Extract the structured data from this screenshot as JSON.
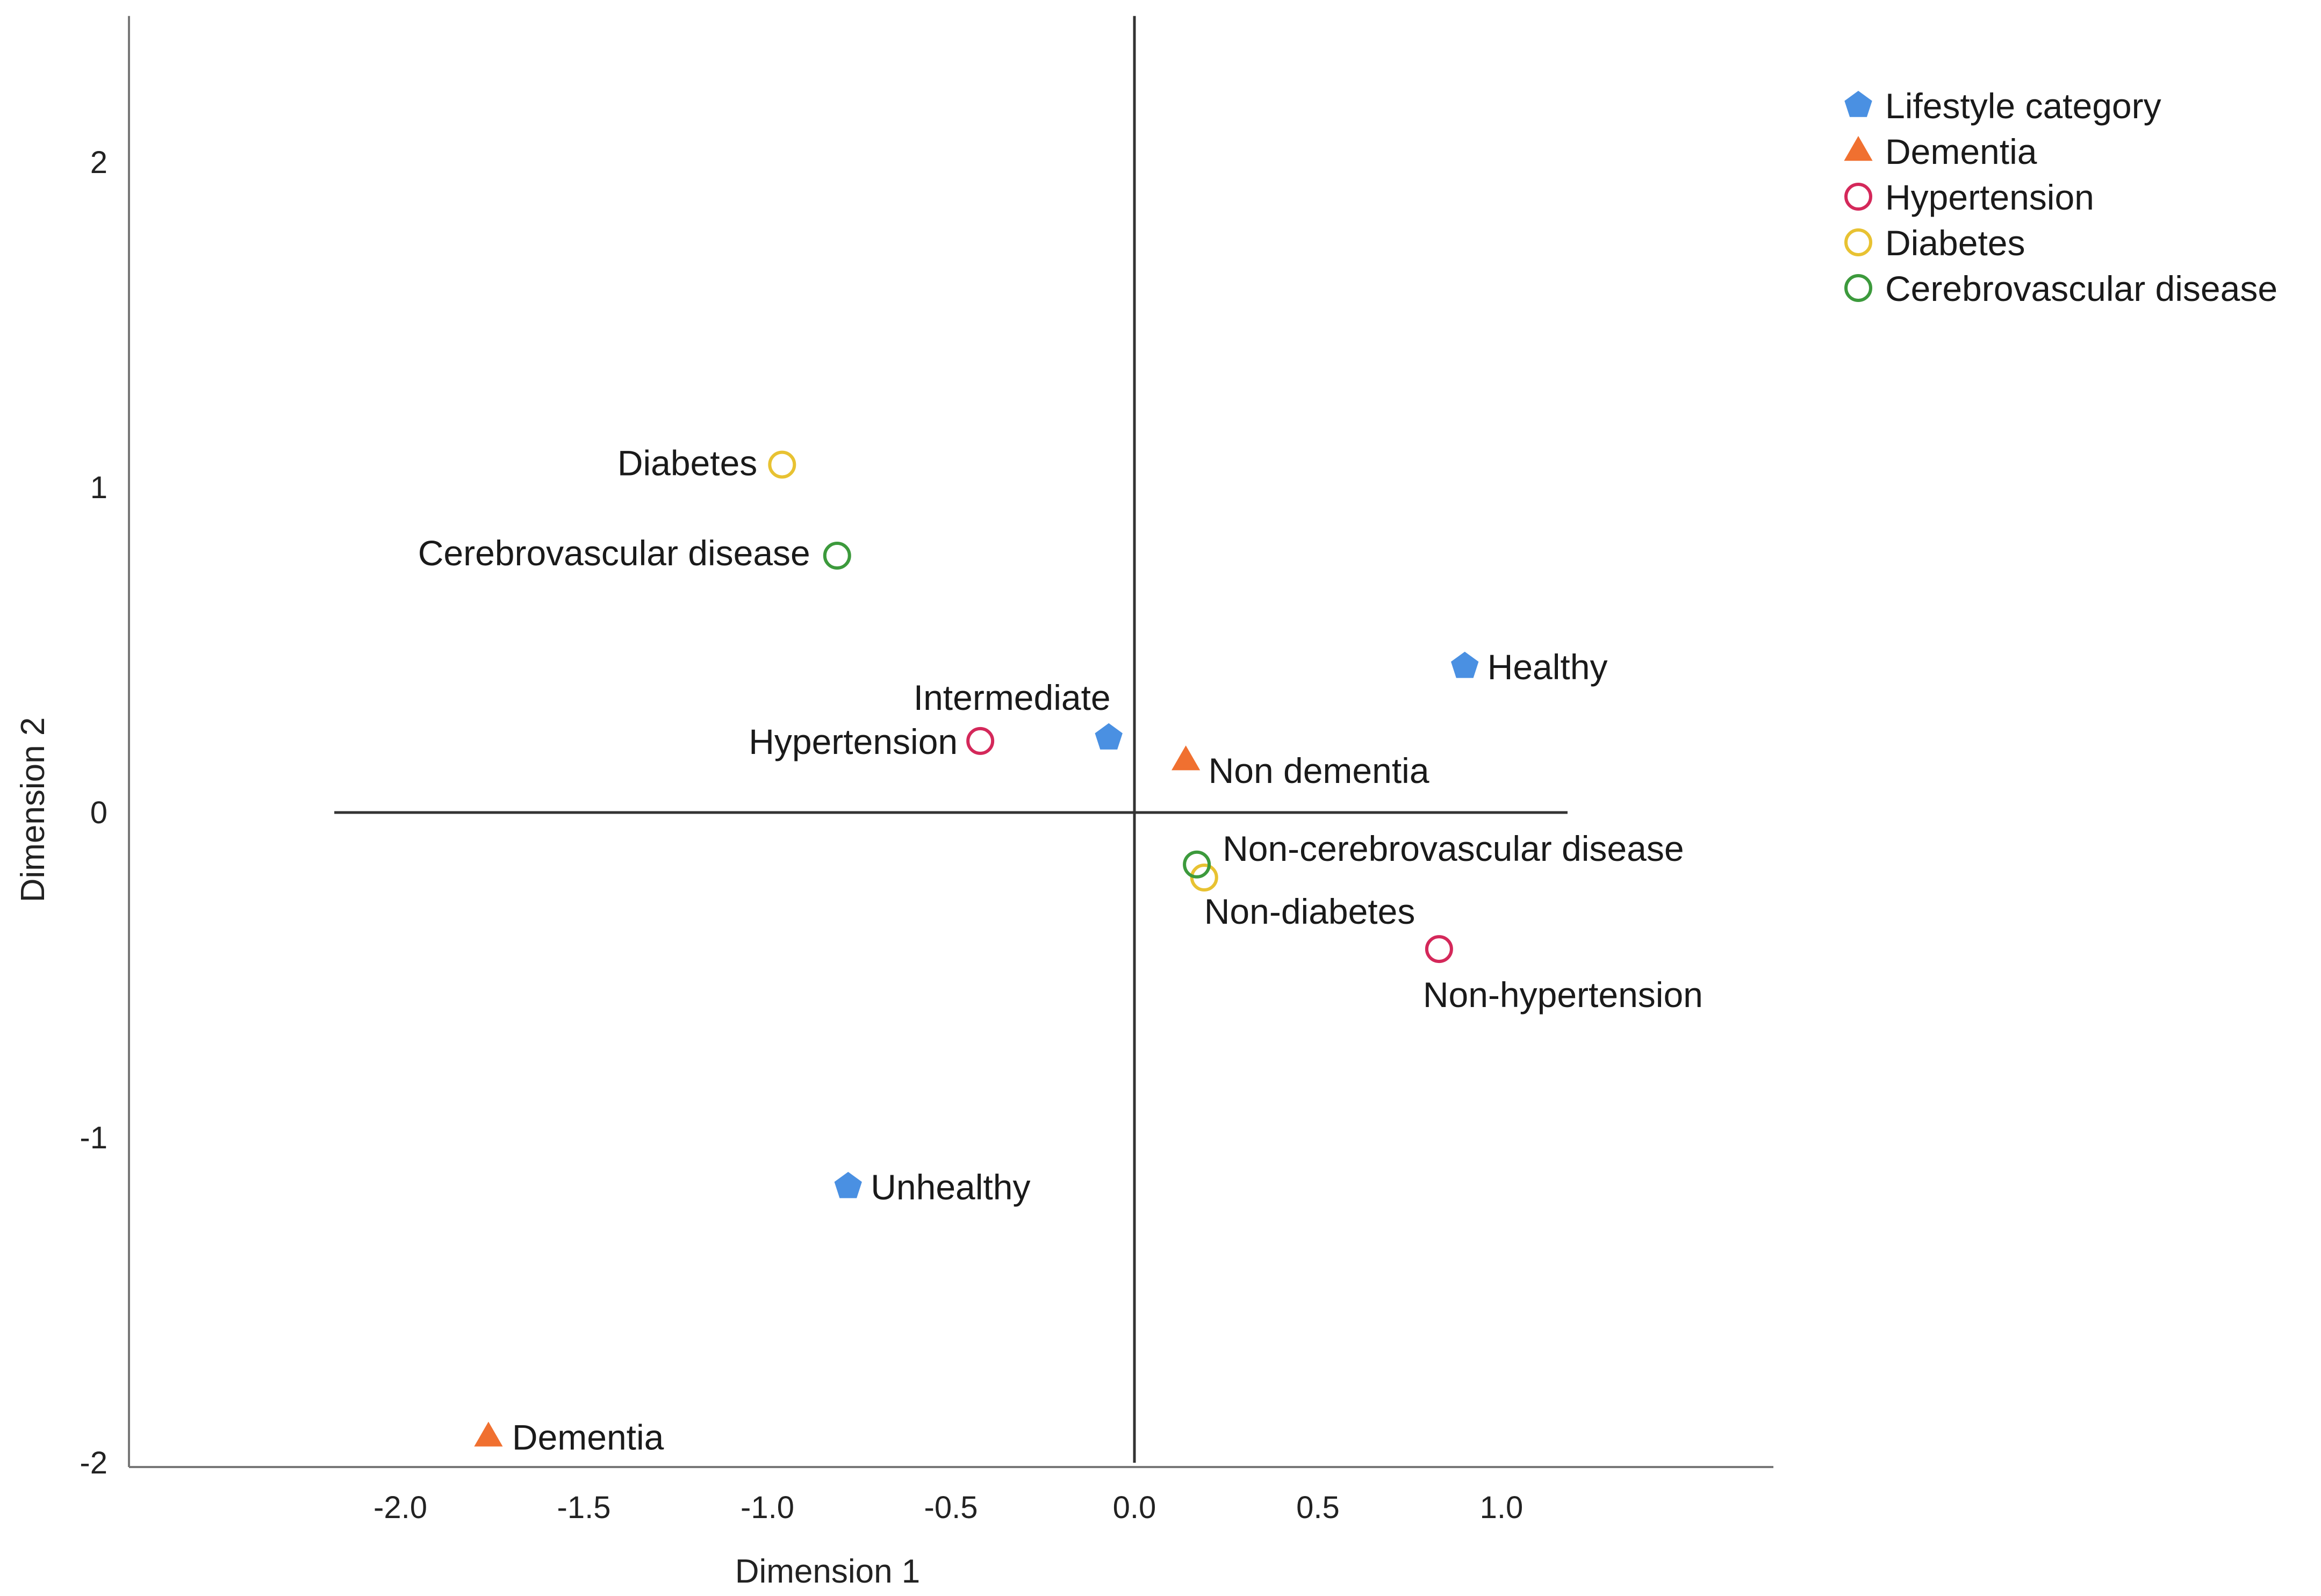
{
  "chart_data": {
    "type": "scatter",
    "title": "",
    "xlabel": "Dimension 1",
    "ylabel": "Dimension 2",
    "xlim": [
      -2.7,
      1.75
    ],
    "ylim": [
      -2.0,
      2.45
    ],
    "xticks": [
      "-2.0",
      "-1.5",
      "-1.0",
      "-0.5",
      "0.0",
      "0.5",
      "1.0"
    ],
    "xtick_values": [
      -2.0,
      -1.5,
      -1.0,
      -0.5,
      0.0,
      0.5,
      1.0
    ],
    "yticks": [
      "2",
      "1",
      "0",
      "-1",
      "-2"
    ],
    "ytick_values": [
      2,
      1,
      0,
      -1,
      -2
    ],
    "reference_lines": {
      "x0_y_range": [
        -2.0,
        2.45
      ],
      "y0_x_range": [
        -2.18,
        1.18
      ]
    },
    "legend_position": "top-right",
    "series": [
      {
        "name": "Lifestyle category",
        "marker": "pentagon",
        "color": "#4a90e2",
        "filled": true,
        "points": [
          {
            "label": "Healthy",
            "x": 0.9,
            "y": 0.45
          },
          {
            "label": "Intermediate",
            "x": -0.07,
            "y": 0.23
          },
          {
            "label": "Unhealthy",
            "x": -0.78,
            "y": -1.15
          }
        ]
      },
      {
        "name": "Dementia",
        "marker": "triangle",
        "color": "#f07030",
        "filled": true,
        "points": [
          {
            "label": "Non dementia",
            "x": 0.14,
            "y": 0.16
          },
          {
            "label": "Dementia",
            "x": -1.76,
            "y": -1.92
          }
        ]
      },
      {
        "name": "Hypertension",
        "marker": "circle",
        "color": "#d4285a",
        "filled": false,
        "points": [
          {
            "label": "Hypertension",
            "x": -0.42,
            "y": 0.22
          },
          {
            "label": "Non-hypertension",
            "x": 0.83,
            "y": -0.42
          }
        ]
      },
      {
        "name": "Diabetes",
        "marker": "circle",
        "color": "#e8c232",
        "filled": false,
        "points": [
          {
            "label": "Diabetes",
            "x": -0.96,
            "y": 1.07
          },
          {
            "label": "Non-diabetes",
            "x": 0.19,
            "y": -0.2
          }
        ]
      },
      {
        "name": "Cerebrovascular disease",
        "marker": "circle",
        "color": "#3c9a3c",
        "filled": false,
        "points": [
          {
            "label": "Cerebrovascular disease",
            "x": -0.81,
            "y": 0.79
          },
          {
            "label": "Non-cerebrovascular disease",
            "x": 0.17,
            "y": -0.16
          }
        ]
      }
    ]
  }
}
